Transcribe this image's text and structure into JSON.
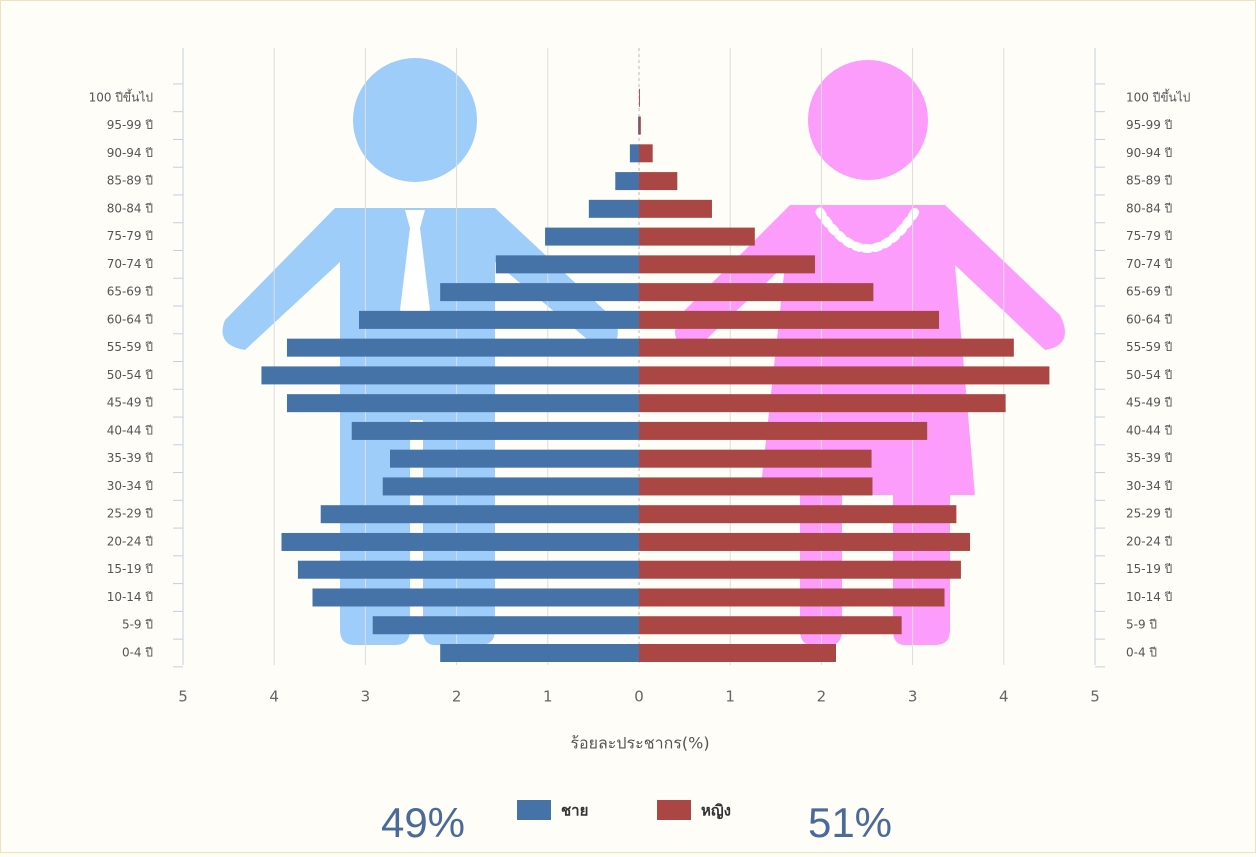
{
  "chart_data": {
    "type": "pyramid",
    "categories": [
      "0-4 ปี",
      "5-9 ปี",
      "10-14 ปี",
      "15-19 ปี",
      "20-24 ปี",
      "25-29 ปี",
      "30-34 ปี",
      "35-39 ปี",
      "40-44 ปี",
      "45-49 ปี",
      "50-54 ปี",
      "55-59 ปี",
      "60-64 ปี",
      "65-69 ปี",
      "70-74 ปี",
      "75-79 ปี",
      "80-84 ปี",
      "85-89 ปี",
      "90-94 ปี",
      "95-99 ปี",
      "100 ปีขึ้นไป"
    ],
    "series": [
      {
        "name": "ชาย",
        "color": "#4572a7",
        "values": [
          -2.18,
          -2.92,
          -3.58,
          -3.74,
          -3.92,
          -3.49,
          -2.81,
          -2.73,
          -3.15,
          -3.86,
          -4.14,
          -3.86,
          -3.07,
          -2.18,
          -1.57,
          -1.03,
          -0.55,
          -0.26,
          -0.1,
          -0.01,
          0
        ]
      },
      {
        "name": "หญิง",
        "color": "#aa4643",
        "values": [
          2.16,
          2.88,
          3.35,
          3.53,
          3.63,
          3.48,
          2.56,
          2.55,
          3.16,
          4.02,
          4.5,
          4.11,
          3.29,
          2.57,
          1.93,
          1.27,
          0.8,
          0.42,
          0.15,
          0.02,
          0.01
        ]
      }
    ],
    "xlim": [
      -5,
      5
    ],
    "xticks": [
      {
        "value": -5,
        "label": "5"
      },
      {
        "value": -4,
        "label": "4"
      },
      {
        "value": -3,
        "label": "3"
      },
      {
        "value": -2,
        "label": "2"
      },
      {
        "value": -1,
        "label": "1"
      },
      0,
      1,
      2,
      3,
      4,
      5
    ],
    "xlabel": "ร้อยละประชากร(%)",
    "grid": true,
    "annotations": [
      "49%",
      "51%"
    ]
  }
}
